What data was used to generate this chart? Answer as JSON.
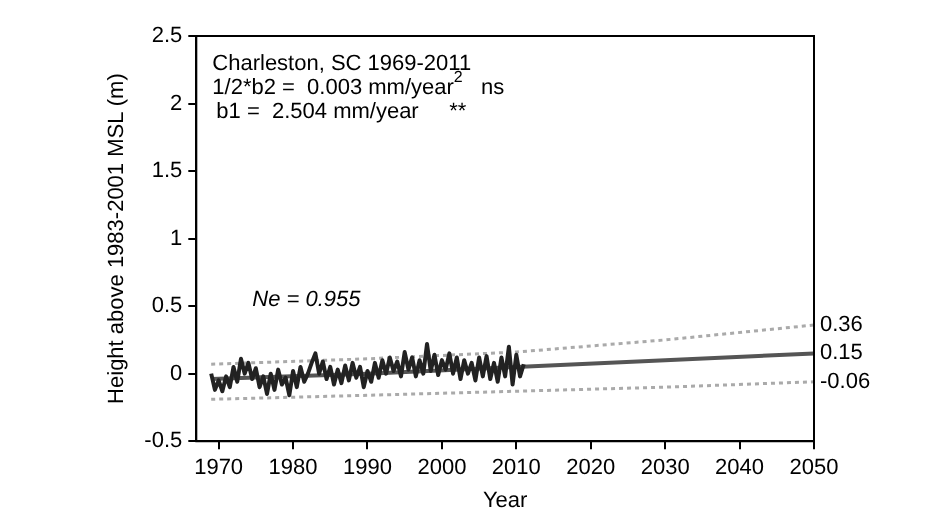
{
  "chart_data": {
    "type": "line",
    "xlabel": "Year",
    "ylabel": "Height above 1983-2001 MSL (m)",
    "xlim": [
      1967,
      2050
    ],
    "xticks": [
      1970,
      1980,
      1990,
      2000,
      2010,
      2020,
      2030,
      2040,
      2050
    ],
    "ylim": [
      -0.5,
      2.5
    ],
    "yticks": [
      -0.5,
      0,
      0.5,
      1,
      1.5,
      2,
      2.5
    ],
    "grid": false,
    "legend": false,
    "marker": "none",
    "series": [
      {
        "color": "#222222",
        "line_style": "solid",
        "x": [
          1969,
          1969.5,
          1970,
          1970.5,
          1971,
          1971.5,
          1972,
          1972.5,
          1973,
          1973.5,
          1974,
          1974.5,
          1975,
          1975.5,
          1976,
          1976.5,
          1977,
          1977.5,
          1978,
          1978.5,
          1979,
          1979.5,
          1980,
          1980.5,
          1981,
          1981.5,
          1982,
          1982.5,
          1983,
          1983.5,
          1984,
          1984.5,
          1985,
          1985.5,
          1986,
          1986.5,
          1987,
          1987.5,
          1988,
          1988.5,
          1989,
          1989.5,
          1990,
          1990.5,
          1991,
          1991.5,
          1992,
          1992.5,
          1993,
          1993.5,
          1994,
          1994.5,
          1995,
          1995.5,
          1996,
          1996.5,
          1997,
          1997.5,
          1998,
          1998.5,
          1999,
          1999.5,
          2000,
          2000.5,
          2001,
          2001.5,
          2002,
          2002.5,
          2003,
          2003.5,
          2004,
          2004.5,
          2005,
          2005.5,
          2006,
          2006.5,
          2007,
          2007.5,
          2008,
          2008.5,
          2009,
          2009.5,
          2010,
          2010.5,
          2011
        ],
        "values": [
          0.0,
          -0.12,
          -0.05,
          -0.13,
          -0.02,
          -0.1,
          0.05,
          -0.06,
          0.11,
          0.0,
          0.08,
          -0.04,
          0.04,
          -0.1,
          -0.02,
          -0.15,
          0.0,
          -0.12,
          0.03,
          -0.08,
          -0.03,
          -0.16,
          0.02,
          -0.1,
          0.05,
          -0.06,
          0.0,
          0.08,
          0.15,
          0.0,
          0.09,
          -0.04,
          0.05,
          -0.08,
          0.03,
          -0.07,
          0.06,
          -0.05,
          0.08,
          -0.03,
          0.05,
          -0.1,
          0.02,
          -0.06,
          0.08,
          -0.03,
          0.1,
          0.0,
          0.12,
          0.02,
          0.09,
          -0.02,
          0.16,
          0.03,
          0.12,
          -0.02,
          0.1,
          0.0,
          0.22,
          0.02,
          0.14,
          -0.01,
          0.1,
          0.03,
          0.15,
          0.0,
          0.12,
          -0.04,
          0.1,
          0.0,
          0.08,
          -0.05,
          0.12,
          -0.02,
          0.13,
          -0.04,
          0.08,
          -0.06,
          0.12,
          -0.02,
          0.2,
          -0.08,
          0.14,
          -0.02,
          0.07
        ]
      },
      {
        "color": "#555555",
        "line_style": "solid",
        "x": [
          1969,
          1990,
          2010,
          2030,
          2050
        ],
        "values": [
          -0.04,
          0.0,
          0.05,
          0.1,
          0.15
        ]
      },
      {
        "color": "#aaaaaa",
        "line_style": "dotted",
        "x": [
          1969,
          1990,
          2010,
          2030,
          2050
        ],
        "values": [
          0.07,
          0.11,
          0.16,
          0.25,
          0.36
        ]
      },
      {
        "color": "#aaaaaa",
        "line_style": "dotted",
        "x": [
          1969,
          1990,
          2010,
          2030,
          2050
        ],
        "values": [
          -0.19,
          -0.16,
          -0.13,
          -0.1,
          -0.06
        ]
      }
    ],
    "annotations": [
      "Charleston, SC 1969-2011",
      "1/2*b2 =  0.003 mm/year$^{2}$   ns",
      "b1 =  2.504 mm/year     **",
      "Ne = 0.955",
      "0.36",
      "0.15",
      "-0.06"
    ]
  }
}
